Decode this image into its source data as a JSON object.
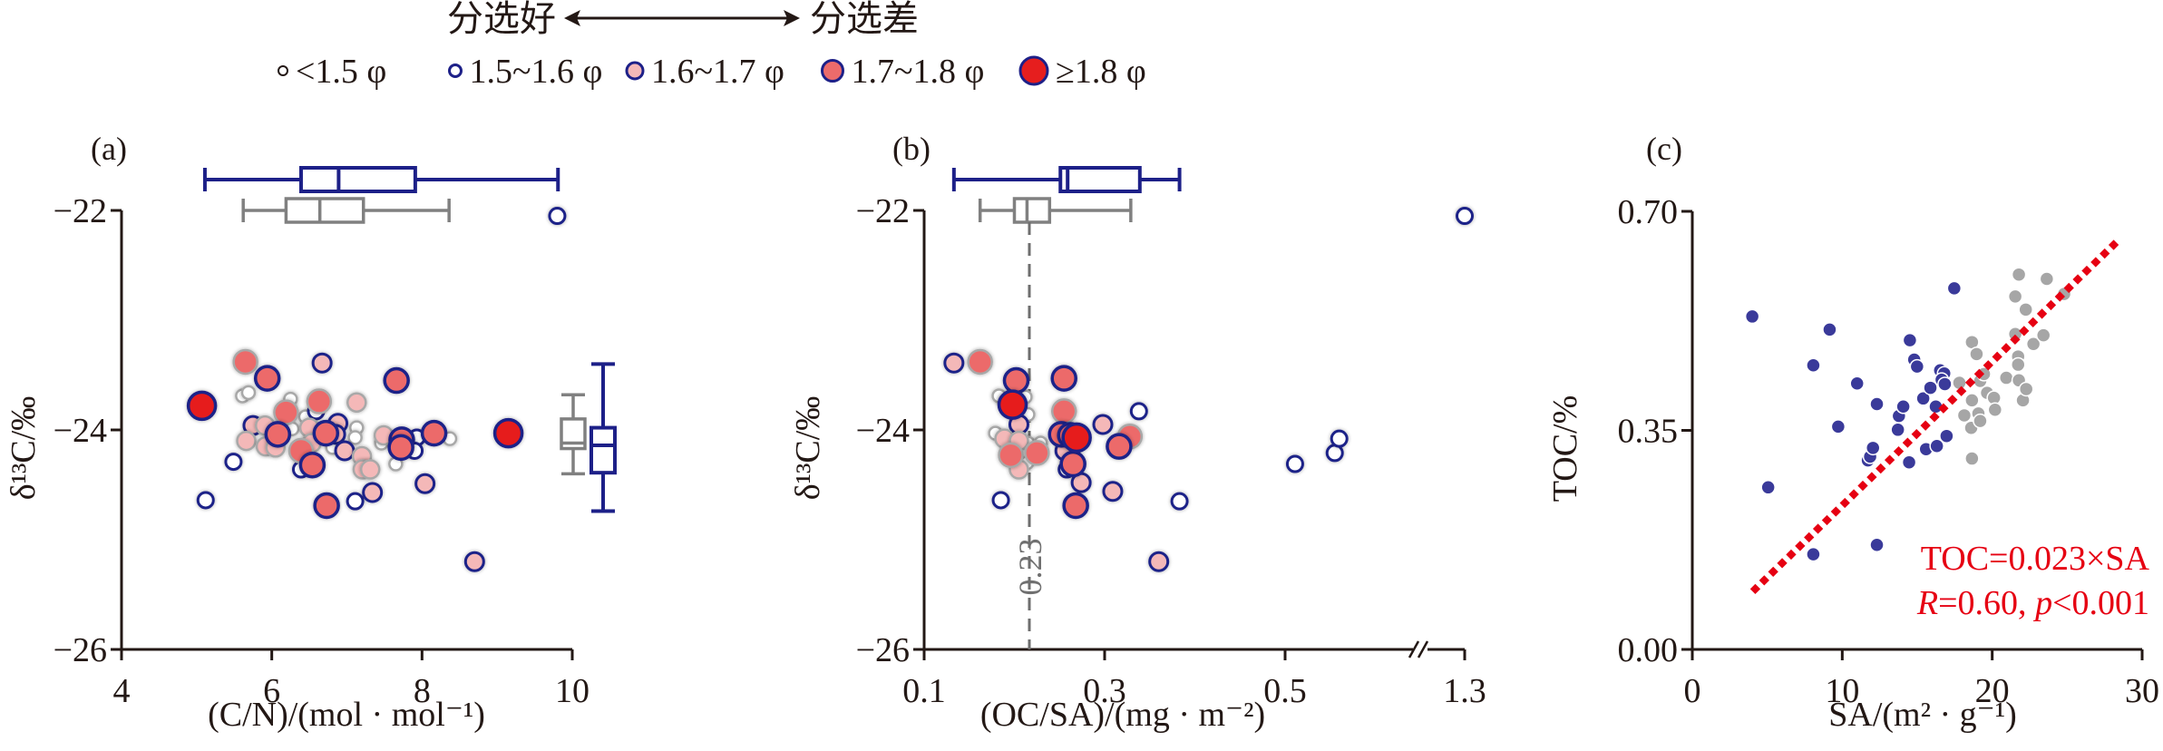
{
  "header": {
    "left_text": "分选好",
    "right_text": "分选差",
    "arrow": "double-arrow"
  },
  "legend": [
    {
      "label": "<1.5 φ",
      "fill": "#ffffff",
      "stroke": "#231815",
      "size": 1
    },
    {
      "label": "1.5~1.6 φ",
      "fill": "#ffffff",
      "stroke": "#1d2088",
      "size": 2
    },
    {
      "label": "1.6~1.7 φ",
      "fill": "#f4b8b8",
      "stroke": "#1d2088",
      "size": 3
    },
    {
      "label": "1.7~1.8 φ",
      "fill": "#ec6b6b",
      "stroke": "#1d2088",
      "size": 4
    },
    {
      "label": "≥1.8 φ",
      "fill": "#e61e1e",
      "stroke": "#1d2088",
      "size": 5
    }
  ],
  "colors": {
    "blue": "#1d2088",
    "gray": "#808080",
    "red": "#e60012",
    "light_gray_point": "#a9a9a9"
  },
  "chart_data": [
    {
      "panel": "(a)",
      "type": "scatter",
      "xlabel": "(C/N)/(mol · mol⁻¹)",
      "ylabel": "δ¹³C/‰",
      "xlim": [
        4,
        10
      ],
      "ylim": [
        -26,
        -22
      ],
      "xticks": [
        "4",
        "6",
        "8",
        "10"
      ],
      "xtick_values": [
        4,
        6,
        8,
        10
      ],
      "yticks": [
        "−22",
        "−24",
        "−26"
      ],
      "ytick_values": [
        -22,
        -24,
        -26
      ],
      "grid": false,
      "points": [
        {
          "x": 5.07,
          "y": -23.78,
          "cls": 5,
          "edge": "blue"
        },
        {
          "x": 9.15,
          "y": -24.03,
          "cls": 5,
          "edge": "blue"
        },
        {
          "x": 5.65,
          "y": -23.38,
          "cls": 4,
          "edge": "gray"
        },
        {
          "x": 5.94,
          "y": -23.53,
          "cls": 4,
          "edge": "blue"
        },
        {
          "x": 6.67,
          "y": -23.39,
          "cls": 3,
          "edge": "blue"
        },
        {
          "x": 7.66,
          "y": -23.55,
          "cls": 4,
          "edge": "blue"
        },
        {
          "x": 5.61,
          "y": -23.69,
          "cls": 1,
          "edge": "gray"
        },
        {
          "x": 5.69,
          "y": -23.66,
          "cls": 1,
          "edge": "gray"
        },
        {
          "x": 6.25,
          "y": -23.72,
          "cls": 1,
          "edge": "gray"
        },
        {
          "x": 6.19,
          "y": -23.84,
          "cls": 4,
          "edge": "gray"
        },
        {
          "x": 6.63,
          "y": -23.74,
          "cls": 4,
          "edge": "gray"
        },
        {
          "x": 7.13,
          "y": -23.75,
          "cls": 3,
          "edge": "gray"
        },
        {
          "x": 6.59,
          "y": -23.83,
          "cls": 2,
          "edge": "blue"
        },
        {
          "x": 5.75,
          "y": -23.96,
          "cls": 3,
          "edge": "blue"
        },
        {
          "x": 5.91,
          "y": -23.96,
          "cls": 3,
          "edge": "gray"
        },
        {
          "x": 6.08,
          "y": -24.04,
          "cls": 4,
          "edge": "blue"
        },
        {
          "x": 6.27,
          "y": -23.99,
          "cls": 1,
          "edge": "gray"
        },
        {
          "x": 6.45,
          "y": -23.88,
          "cls": 1,
          "edge": "gray"
        },
        {
          "x": 6.5,
          "y": -23.98,
          "cls": 3,
          "edge": "gray"
        },
        {
          "x": 6.72,
          "y": -24.03,
          "cls": 4,
          "edge": "blue"
        },
        {
          "x": 6.88,
          "y": -23.94,
          "cls": 3,
          "edge": "blue"
        },
        {
          "x": 6.85,
          "y": -24.04,
          "cls": 3,
          "edge": "blue"
        },
        {
          "x": 6.97,
          "y": -24.19,
          "cls": 3,
          "edge": "blue"
        },
        {
          "x": 7.13,
          "y": -23.98,
          "cls": 1,
          "edge": "gray"
        },
        {
          "x": 7.11,
          "y": -24.07,
          "cls": 1,
          "edge": "gray"
        },
        {
          "x": 7.2,
          "y": -24.24,
          "cls": 3,
          "edge": "gray"
        },
        {
          "x": 7.21,
          "y": -24.36,
          "cls": 3,
          "edge": "gray"
        },
        {
          "x": 7.31,
          "y": -24.36,
          "cls": 3,
          "edge": "gray"
        },
        {
          "x": 5.66,
          "y": -24.1,
          "cls": 3,
          "edge": "gray"
        },
        {
          "x": 5.92,
          "y": -24.15,
          "cls": 3,
          "edge": "gray"
        },
        {
          "x": 6.05,
          "y": -24.16,
          "cls": 3,
          "edge": "gray"
        },
        {
          "x": 6.39,
          "y": -24.19,
          "cls": 4,
          "edge": "gray"
        },
        {
          "x": 6.53,
          "y": -24.12,
          "cls": 3,
          "edge": "gray"
        },
        {
          "x": 6.81,
          "y": -24.16,
          "cls": 1,
          "edge": "gray"
        },
        {
          "x": 6.54,
          "y": -24.32,
          "cls": 4,
          "edge": "blue"
        },
        {
          "x": 6.39,
          "y": -24.36,
          "cls": 2,
          "edge": "blue"
        },
        {
          "x": 5.49,
          "y": -24.29,
          "cls": 2,
          "edge": "blue"
        },
        {
          "x": 5.12,
          "y": -24.64,
          "cls": 2,
          "edge": "blue"
        },
        {
          "x": 6.73,
          "y": -24.69,
          "cls": 4,
          "edge": "blue"
        },
        {
          "x": 7.11,
          "y": -24.65,
          "cls": 2,
          "edge": "blue"
        },
        {
          "x": 7.34,
          "y": -24.57,
          "cls": 3,
          "edge": "blue"
        },
        {
          "x": 8.04,
          "y": -24.49,
          "cls": 3,
          "edge": "blue"
        },
        {
          "x": 7.49,
          "y": -24.05,
          "cls": 3,
          "edge": "gray"
        },
        {
          "x": 7.46,
          "y": -24.12,
          "cls": 1,
          "edge": "gray"
        },
        {
          "x": 7.65,
          "y": -24.31,
          "cls": 1,
          "edge": "gray"
        },
        {
          "x": 7.73,
          "y": -24.09,
          "cls": 4,
          "edge": "blue"
        },
        {
          "x": 7.72,
          "y": -24.16,
          "cls": 4,
          "edge": "blue"
        },
        {
          "x": 7.93,
          "y": -24.07,
          "cls": 2,
          "edge": "blue"
        },
        {
          "x": 7.9,
          "y": -24.19,
          "cls": 2,
          "edge": "blue"
        },
        {
          "x": 8.16,
          "y": -24.03,
          "cls": 4,
          "edge": "blue"
        },
        {
          "x": 8.37,
          "y": -24.08,
          "cls": 1,
          "edge": "gray"
        },
        {
          "x": 8.7,
          "y": -25.2,
          "cls": 3,
          "edge": "blue"
        },
        {
          "x": 9.8,
          "y": -22.05,
          "cls": 2,
          "edge": "blue"
        }
      ],
      "boxplot_x": [
        {
          "group": "blue",
          "min": 5.11,
          "q1": 6.39,
          "median": 6.89,
          "q3": 7.91,
          "max": 9.81
        },
        {
          "group": "gray",
          "min": 5.62,
          "q1": 6.19,
          "median": 6.64,
          "q3": 7.22,
          "max": 8.36
        }
      ],
      "boxplot_y": [
        {
          "group": "gray",
          "min": -24.4,
          "q1": -24.17,
          "median": -24.12,
          "q3": -23.9,
          "max": -23.68
        },
        {
          "group": "blue",
          "min": -24.74,
          "q1": -24.39,
          "median": -24.14,
          "q3": -23.98,
          "max": -23.4
        }
      ]
    },
    {
      "panel": "(b)",
      "type": "scatter",
      "xlabel": "(OC/SA)/(mg · m⁻²)",
      "ylabel": "δ¹³C/‰",
      "xlim": [
        0.1,
        0.6
      ],
      "x_break": {
        "after": 0.6,
        "resume": 1.3
      },
      "ylim": [
        -26,
        -22
      ],
      "xticks": [
        "0.1",
        "0.3",
        "0.5",
        "1.3"
      ],
      "xtick_values": [
        0.1,
        0.3,
        0.5,
        1.3
      ],
      "yticks": [
        "−22",
        "−24",
        "−26"
      ],
      "ytick_values": [
        -22,
        -24,
        -26
      ],
      "grid": false,
      "reference_line": {
        "x": 0.23,
        "label": "0.23",
        "style": "dashed"
      },
      "points": [
        {
          "x": 0.133,
          "y": -23.39,
          "cls": 3,
          "edge": "blue"
        },
        {
          "x": 0.162,
          "y": -23.38,
          "cls": 4,
          "edge": "gray"
        },
        {
          "x": 0.202,
          "y": -23.55,
          "cls": 4,
          "edge": "blue"
        },
        {
          "x": 0.255,
          "y": -23.53,
          "cls": 4,
          "edge": "blue"
        },
        {
          "x": 0.183,
          "y": -23.69,
          "cls": 1,
          "edge": "gray"
        },
        {
          "x": 0.212,
          "y": -23.7,
          "cls": 1,
          "edge": "gray"
        },
        {
          "x": 0.19,
          "y": -23.74,
          "cls": 1,
          "edge": "gray"
        },
        {
          "x": 0.215,
          "y": -23.86,
          "cls": 1,
          "edge": "gray"
        },
        {
          "x": 0.198,
          "y": -23.77,
          "cls": 5,
          "edge": "blue"
        },
        {
          "x": 0.255,
          "y": -23.83,
          "cls": 4,
          "edge": "gray"
        },
        {
          "x": 0.338,
          "y": -23.83,
          "cls": 2,
          "edge": "blue"
        },
        {
          "x": 0.205,
          "y": -23.95,
          "cls": 3,
          "edge": "blue"
        },
        {
          "x": 0.298,
          "y": -23.95,
          "cls": 3,
          "edge": "blue"
        },
        {
          "x": 0.179,
          "y": -24.03,
          "cls": 1,
          "edge": "gray"
        },
        {
          "x": 0.189,
          "y": -24.08,
          "cls": 3,
          "edge": "gray"
        },
        {
          "x": 0.205,
          "y": -24.1,
          "cls": 3,
          "edge": "gray"
        },
        {
          "x": 0.215,
          "y": -24.12,
          "cls": 1,
          "edge": "gray"
        },
        {
          "x": 0.229,
          "y": -24.12,
          "cls": 1,
          "edge": "gray"
        },
        {
          "x": 0.196,
          "y": -24.23,
          "cls": 4,
          "edge": "gray"
        },
        {
          "x": 0.225,
          "y": -24.21,
          "cls": 4,
          "edge": "gray"
        },
        {
          "x": 0.214,
          "y": -24.3,
          "cls": 1,
          "edge": "gray"
        },
        {
          "x": 0.205,
          "y": -24.36,
          "cls": 3,
          "edge": "gray"
        },
        {
          "x": 0.252,
          "y": -24.04,
          "cls": 4,
          "edge": "blue"
        },
        {
          "x": 0.262,
          "y": -24.05,
          "cls": 4,
          "edge": "blue"
        },
        {
          "x": 0.269,
          "y": -24.07,
          "cls": 5,
          "edge": "blue"
        },
        {
          "x": 0.259,
          "y": -24.04,
          "cls": 3,
          "edge": "blue"
        },
        {
          "x": 0.328,
          "y": -24.06,
          "cls": 4,
          "edge": "gray"
        },
        {
          "x": 0.316,
          "y": -24.15,
          "cls": 4,
          "edge": "blue"
        },
        {
          "x": 0.256,
          "y": -24.19,
          "cls": 3,
          "edge": "blue"
        },
        {
          "x": 0.265,
          "y": -24.31,
          "cls": 4,
          "edge": "blue"
        },
        {
          "x": 0.258,
          "y": -24.36,
          "cls": 2,
          "edge": "blue"
        },
        {
          "x": 0.274,
          "y": -24.48,
          "cls": 3,
          "edge": "blue"
        },
        {
          "x": 0.309,
          "y": -24.56,
          "cls": 3,
          "edge": "blue"
        },
        {
          "x": 0.185,
          "y": -24.64,
          "cls": 2,
          "edge": "blue"
        },
        {
          "x": 0.268,
          "y": -24.69,
          "cls": 4,
          "edge": "blue"
        },
        {
          "x": 0.383,
          "y": -24.65,
          "cls": 2,
          "edge": "blue"
        },
        {
          "x": 0.36,
          "y": -25.2,
          "cls": 3,
          "edge": "blue"
        },
        {
          "x": 0.511,
          "y": -24.31,
          "cls": 2,
          "edge": "blue"
        },
        {
          "x": 0.555,
          "y": -24.21,
          "cls": 2,
          "edge": "blue"
        },
        {
          "x": 0.56,
          "y": -24.08,
          "cls": 2,
          "edge": "blue"
        },
        {
          "x": 1.3,
          "y": -22.05,
          "cls": 2,
          "edge": "blue"
        }
      ],
      "boxplot_x": [
        {
          "group": "blue",
          "min": 0.133,
          "q1": 0.251,
          "median": 0.259,
          "q3": 0.339,
          "max": 0.383
        },
        {
          "group": "gray",
          "min": 0.162,
          "q1": 0.2,
          "median": 0.214,
          "q3": 0.239,
          "max": 0.329
        }
      ]
    },
    {
      "panel": "(c)",
      "type": "scatter",
      "xlabel": "SA/(m² · g⁻¹)",
      "ylabel": "TOC/%",
      "xlim": [
        0,
        30
      ],
      "ylim": [
        0,
        0.7
      ],
      "xticks": [
        "0",
        "10",
        "20",
        "30"
      ],
      "xtick_values": [
        0,
        10,
        20,
        30
      ],
      "yticks": [
        "0.70",
        "0.35",
        "0.00"
      ],
      "ytick_values": [
        0.7,
        0.35,
        0.0
      ],
      "grid": false,
      "fit": {
        "slope": 0.023,
        "intercept": 0,
        "x_range": [
          4.2,
          28.1
        ],
        "style": "dotted",
        "equation": "TOC=0.023×SA",
        "stats_R": "R",
        "stats_R_value": "=0.60, ",
        "stats_p": "p",
        "stats_p_value": "<0.001"
      },
      "series": [
        {
          "name": "blue",
          "x": [
            4.0,
            5.06,
            8.07,
            8.07,
            9.16,
            9.73,
            10.99,
            12.31,
            12.31,
            11.71,
            11.86,
            12.05,
            13.71,
            13.78,
            14.07,
            14.46,
            14.51,
            14.8,
            14.99,
            15.4,
            15.59,
            15.88,
            16.24,
            16.31,
            16.53,
            16.8,
            16.63,
            16.84,
            16.96,
            17.47
          ],
          "y": [
            0.532,
            0.259,
            0.454,
            0.152,
            0.511,
            0.356,
            0.425,
            0.392,
            0.167,
            0.302,
            0.308,
            0.322,
            0.351,
            0.373,
            0.388,
            0.299,
            0.494,
            0.463,
            0.452,
            0.401,
            0.32,
            0.418,
            0.388,
            0.325,
            0.446,
            0.441,
            0.431,
            0.424,
            0.341,
            0.577
          ]
        },
        {
          "name": "gray",
          "x": [
            17.81,
            18.14,
            18.65,
            18.65,
            18.6,
            18.65,
            18.96,
            19.08,
            19.2,
            19.2,
            19.45,
            19.66,
            20.12,
            20.19,
            20.94,
            21.54,
            21.54,
            21.73,
            21.73,
            21.78,
            21.78,
            22.05,
            22.24,
            22.27,
            22.75,
            23.42,
            23.64,
            24.8
          ],
          "y": [
            0.426,
            0.374,
            0.491,
            0.398,
            0.354,
            0.305,
            0.472,
            0.377,
            0.365,
            0.429,
            0.44,
            0.41,
            0.402,
            0.383,
            0.434,
            0.564,
            0.504,
            0.468,
            0.455,
            0.599,
            0.43,
            0.398,
            0.543,
            0.416,
            0.488,
            0.502,
            0.592,
            0.568
          ]
        }
      ]
    }
  ]
}
